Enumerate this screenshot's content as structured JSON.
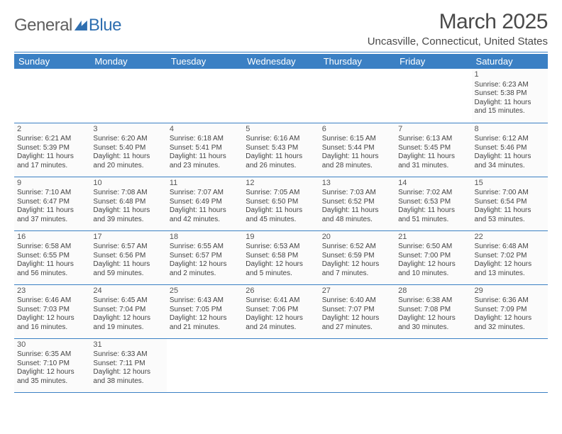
{
  "logo": {
    "part1": "General",
    "part2": "Blue"
  },
  "title": "March 2025",
  "location": "Uncasville, Connecticut, United States",
  "colors": {
    "header_bg": "#3b80c4",
    "header_text": "#ffffff",
    "rule": "#3b80c4",
    "text": "#444444",
    "logo_blue": "#2f6fb0"
  },
  "days_header": [
    "Sunday",
    "Monday",
    "Tuesday",
    "Wednesday",
    "Thursday",
    "Friday",
    "Saturday"
  ],
  "weeks": [
    [
      null,
      null,
      null,
      null,
      null,
      null,
      {
        "n": "1",
        "sr": "Sunrise: 6:23 AM",
        "ss": "Sunset: 5:38 PM",
        "d1": "Daylight: 11 hours",
        "d2": "and 15 minutes."
      }
    ],
    [
      {
        "n": "2",
        "sr": "Sunrise: 6:21 AM",
        "ss": "Sunset: 5:39 PM",
        "d1": "Daylight: 11 hours",
        "d2": "and 17 minutes."
      },
      {
        "n": "3",
        "sr": "Sunrise: 6:20 AM",
        "ss": "Sunset: 5:40 PM",
        "d1": "Daylight: 11 hours",
        "d2": "and 20 minutes."
      },
      {
        "n": "4",
        "sr": "Sunrise: 6:18 AM",
        "ss": "Sunset: 5:41 PM",
        "d1": "Daylight: 11 hours",
        "d2": "and 23 minutes."
      },
      {
        "n": "5",
        "sr": "Sunrise: 6:16 AM",
        "ss": "Sunset: 5:43 PM",
        "d1": "Daylight: 11 hours",
        "d2": "and 26 minutes."
      },
      {
        "n": "6",
        "sr": "Sunrise: 6:15 AM",
        "ss": "Sunset: 5:44 PM",
        "d1": "Daylight: 11 hours",
        "d2": "and 28 minutes."
      },
      {
        "n": "7",
        "sr": "Sunrise: 6:13 AM",
        "ss": "Sunset: 5:45 PM",
        "d1": "Daylight: 11 hours",
        "d2": "and 31 minutes."
      },
      {
        "n": "8",
        "sr": "Sunrise: 6:12 AM",
        "ss": "Sunset: 5:46 PM",
        "d1": "Daylight: 11 hours",
        "d2": "and 34 minutes."
      }
    ],
    [
      {
        "n": "9",
        "sr": "Sunrise: 7:10 AM",
        "ss": "Sunset: 6:47 PM",
        "d1": "Daylight: 11 hours",
        "d2": "and 37 minutes."
      },
      {
        "n": "10",
        "sr": "Sunrise: 7:08 AM",
        "ss": "Sunset: 6:48 PM",
        "d1": "Daylight: 11 hours",
        "d2": "and 39 minutes."
      },
      {
        "n": "11",
        "sr": "Sunrise: 7:07 AM",
        "ss": "Sunset: 6:49 PM",
        "d1": "Daylight: 11 hours",
        "d2": "and 42 minutes."
      },
      {
        "n": "12",
        "sr": "Sunrise: 7:05 AM",
        "ss": "Sunset: 6:50 PM",
        "d1": "Daylight: 11 hours",
        "d2": "and 45 minutes."
      },
      {
        "n": "13",
        "sr": "Sunrise: 7:03 AM",
        "ss": "Sunset: 6:52 PM",
        "d1": "Daylight: 11 hours",
        "d2": "and 48 minutes."
      },
      {
        "n": "14",
        "sr": "Sunrise: 7:02 AM",
        "ss": "Sunset: 6:53 PM",
        "d1": "Daylight: 11 hours",
        "d2": "and 51 minutes."
      },
      {
        "n": "15",
        "sr": "Sunrise: 7:00 AM",
        "ss": "Sunset: 6:54 PM",
        "d1": "Daylight: 11 hours",
        "d2": "and 53 minutes."
      }
    ],
    [
      {
        "n": "16",
        "sr": "Sunrise: 6:58 AM",
        "ss": "Sunset: 6:55 PM",
        "d1": "Daylight: 11 hours",
        "d2": "and 56 minutes."
      },
      {
        "n": "17",
        "sr": "Sunrise: 6:57 AM",
        "ss": "Sunset: 6:56 PM",
        "d1": "Daylight: 11 hours",
        "d2": "and 59 minutes."
      },
      {
        "n": "18",
        "sr": "Sunrise: 6:55 AM",
        "ss": "Sunset: 6:57 PM",
        "d1": "Daylight: 12 hours",
        "d2": "and 2 minutes."
      },
      {
        "n": "19",
        "sr": "Sunrise: 6:53 AM",
        "ss": "Sunset: 6:58 PM",
        "d1": "Daylight: 12 hours",
        "d2": "and 5 minutes."
      },
      {
        "n": "20",
        "sr": "Sunrise: 6:52 AM",
        "ss": "Sunset: 6:59 PM",
        "d1": "Daylight: 12 hours",
        "d2": "and 7 minutes."
      },
      {
        "n": "21",
        "sr": "Sunrise: 6:50 AM",
        "ss": "Sunset: 7:00 PM",
        "d1": "Daylight: 12 hours",
        "d2": "and 10 minutes."
      },
      {
        "n": "22",
        "sr": "Sunrise: 6:48 AM",
        "ss": "Sunset: 7:02 PM",
        "d1": "Daylight: 12 hours",
        "d2": "and 13 minutes."
      }
    ],
    [
      {
        "n": "23",
        "sr": "Sunrise: 6:46 AM",
        "ss": "Sunset: 7:03 PM",
        "d1": "Daylight: 12 hours",
        "d2": "and 16 minutes."
      },
      {
        "n": "24",
        "sr": "Sunrise: 6:45 AM",
        "ss": "Sunset: 7:04 PM",
        "d1": "Daylight: 12 hours",
        "d2": "and 19 minutes."
      },
      {
        "n": "25",
        "sr": "Sunrise: 6:43 AM",
        "ss": "Sunset: 7:05 PM",
        "d1": "Daylight: 12 hours",
        "d2": "and 21 minutes."
      },
      {
        "n": "26",
        "sr": "Sunrise: 6:41 AM",
        "ss": "Sunset: 7:06 PM",
        "d1": "Daylight: 12 hours",
        "d2": "and 24 minutes."
      },
      {
        "n": "27",
        "sr": "Sunrise: 6:40 AM",
        "ss": "Sunset: 7:07 PM",
        "d1": "Daylight: 12 hours",
        "d2": "and 27 minutes."
      },
      {
        "n": "28",
        "sr": "Sunrise: 6:38 AM",
        "ss": "Sunset: 7:08 PM",
        "d1": "Daylight: 12 hours",
        "d2": "and 30 minutes."
      },
      {
        "n": "29",
        "sr": "Sunrise: 6:36 AM",
        "ss": "Sunset: 7:09 PM",
        "d1": "Daylight: 12 hours",
        "d2": "and 32 minutes."
      }
    ],
    [
      {
        "n": "30",
        "sr": "Sunrise: 6:35 AM",
        "ss": "Sunset: 7:10 PM",
        "d1": "Daylight: 12 hours",
        "d2": "and 35 minutes."
      },
      {
        "n": "31",
        "sr": "Sunrise: 6:33 AM",
        "ss": "Sunset: 7:11 PM",
        "d1": "Daylight: 12 hours",
        "d2": "and 38 minutes."
      },
      null,
      null,
      null,
      null,
      null
    ]
  ]
}
